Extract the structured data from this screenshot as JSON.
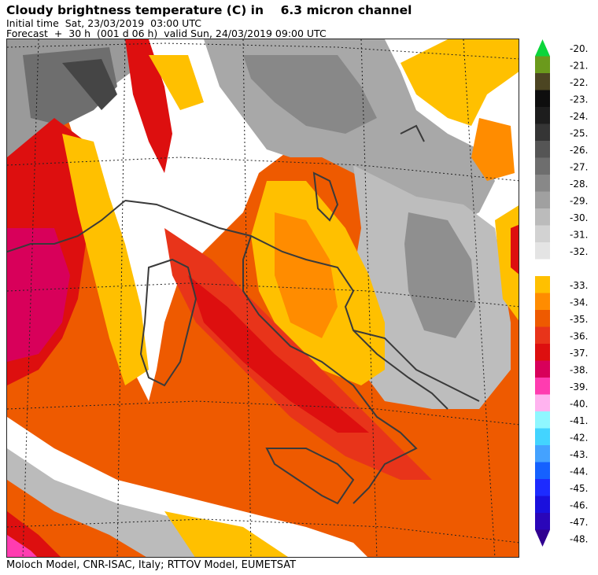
{
  "header": {
    "title": "Cloudy brightness temperature (C) in    6.3 micron channel",
    "initial_time": "Initial time  Sat, 23/03/2019  03:00 UTC",
    "forecast": "Forecast  +  30 h  (001 d 06 h)  valid Sun, 24/03/2019 09:00 UTC"
  },
  "footer": {
    "credits": "Moloch Model, CNR-ISAC, Italy; RTTOV Model, EUMETSAT"
  },
  "legend": {
    "upper_scale": [
      {
        "label": "-20.",
        "color": "#0bd53a"
      },
      {
        "label": "-21.",
        "color": "#6b9a1c"
      },
      {
        "label": "-22.",
        "color": "#4c4522"
      },
      {
        "label": "-23.",
        "color": "#0e0e0e"
      },
      {
        "label": "-24.",
        "color": "#1d1d1d"
      },
      {
        "label": "-25.",
        "color": "#353535"
      },
      {
        "label": "-26.",
        "color": "#555555"
      },
      {
        "label": "-27.",
        "color": "#6e6e6e"
      },
      {
        "label": "-28.",
        "color": "#888888"
      },
      {
        "label": "-29.",
        "color": "#a0a0a0"
      },
      {
        "label": "-30.",
        "color": "#bbbbbb"
      },
      {
        "label": "-31.",
        "color": "#d2d2d2"
      },
      {
        "label": "-32.",
        "color": "#e4e4e4"
      }
    ],
    "lower_scale": [
      {
        "label": "-33.",
        "color": "#ffc000"
      },
      {
        "label": "-34.",
        "color": "#ff8c00"
      },
      {
        "label": "-35.",
        "color": "#ee5a00"
      },
      {
        "label": "-36.",
        "color": "#e8341a"
      },
      {
        "label": "-37.",
        "color": "#dd0f0f"
      },
      {
        "label": "-38.",
        "color": "#d8005a"
      },
      {
        "label": "-39.",
        "color": "#ff3cb0"
      },
      {
        "label": "-40.",
        "color": "#ffb3ef"
      },
      {
        "label": "-41.",
        "color": "#8ff7ff"
      },
      {
        "label": "-42.",
        "color": "#43d4ff"
      },
      {
        "label": "-43.",
        "color": "#44a2ff"
      },
      {
        "label": "-44.",
        "color": "#1561ff"
      },
      {
        "label": "-45.",
        "color": "#1d2bff"
      },
      {
        "label": "-46.",
        "color": "#1a10dd"
      },
      {
        "label": "-47.",
        "color": "#2a06b9"
      },
      {
        "label": "-48.",
        "color": "#300090"
      }
    ]
  }
}
